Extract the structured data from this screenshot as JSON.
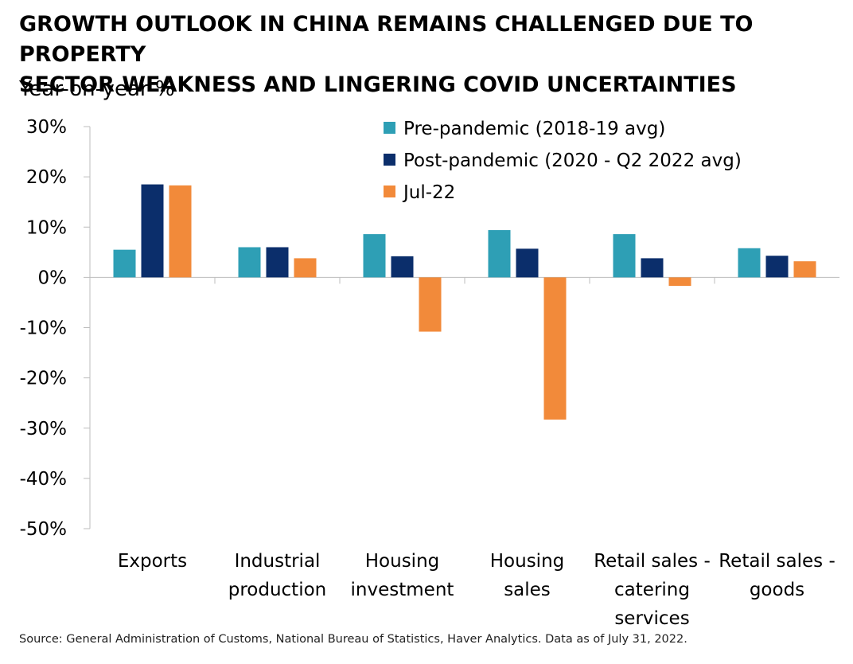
{
  "title_lines": [
    "GROWTH OUTLOOK IN CHINA REMAINS CHALLENGED DUE TO PROPERTY",
    "SECTOR WEAKNESS AND LINGERING COVID UNCERTAINTIES"
  ],
  "subtitle": "Year-on-year %",
  "source": "Source: General Administration of Customs, National Bureau of Statistics, Haver Analytics. Data as of July 31, 2022.",
  "chart_data": {
    "type": "bar",
    "ylabel": "Year-on-year %",
    "ylim": [
      -50,
      30
    ],
    "yticks": [
      30,
      20,
      10,
      0,
      -10,
      -20,
      -30,
      -40,
      -50
    ],
    "ytick_labels": [
      "30%",
      "20%",
      "10%",
      "0%",
      "-10%",
      "-20%",
      "-30%",
      "-40%",
      "-50%"
    ],
    "grid": false,
    "legend_position": "top-right",
    "categories": [
      [
        "Exports"
      ],
      [
        "Industrial",
        "production"
      ],
      [
        "Housing",
        "investment"
      ],
      [
        "Housing",
        "sales"
      ],
      [
        "Retail sales -",
        "catering",
        "services"
      ],
      [
        "Retail sales -",
        "goods"
      ]
    ],
    "series": [
      {
        "name": "Pre-pandemic (2018-19 avg)",
        "color": "#2E9FB5",
        "values": [
          5.5,
          6.0,
          8.6,
          9.4,
          8.6,
          5.8
        ]
      },
      {
        "name": "Post-pandemic (2020 - Q2 2022 avg)",
        "color": "#0B2E6B",
        "values": [
          18.5,
          6.0,
          4.2,
          5.7,
          3.8,
          4.3
        ]
      },
      {
        "name": "Jul-22",
        "color": "#F28A3A",
        "values": [
          18.3,
          3.8,
          -10.8,
          -28.3,
          -1.7,
          3.2
        ]
      }
    ]
  }
}
